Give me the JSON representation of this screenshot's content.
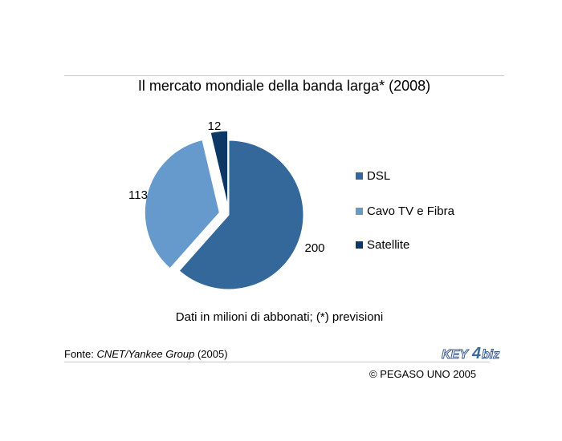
{
  "header": {
    "title": "Il mercato mondiale della banda larga* (2008)"
  },
  "chart_data": {
    "type": "pie",
    "title": "Il mercato mondiale della banda larga* (2008)",
    "slices": [
      {
        "label": "DSL",
        "value": 200,
        "value_label": "200",
        "color": "#34689b",
        "exploded": false
      },
      {
        "label": "Cavo TV e Fibra",
        "value": 113,
        "value_label": "113",
        "color": "#6699cc",
        "exploded": true
      },
      {
        "label": "Satellite",
        "value": 12,
        "value_label": "12",
        "color": "#0d3865",
        "exploded": true
      }
    ],
    "legend_position": "right"
  },
  "legend": {
    "items": [
      {
        "label": "DSL",
        "color": "#34689b"
      },
      {
        "label": "Cavo TV e Fibra",
        "color": "#6699cc"
      },
      {
        "label": "Satellite",
        "color": "#0d3865"
      }
    ]
  },
  "footer": {
    "note": "Dati in milioni di abbonati; (*) previsioni",
    "source_prefix": "Fonte: ",
    "source_name": "CNET/Yankee Group",
    "source_year": " (2005)",
    "copyright": "© PEGASO UNO 2005",
    "logo_text_a": "KEY",
    "logo_text_b": "biz"
  }
}
